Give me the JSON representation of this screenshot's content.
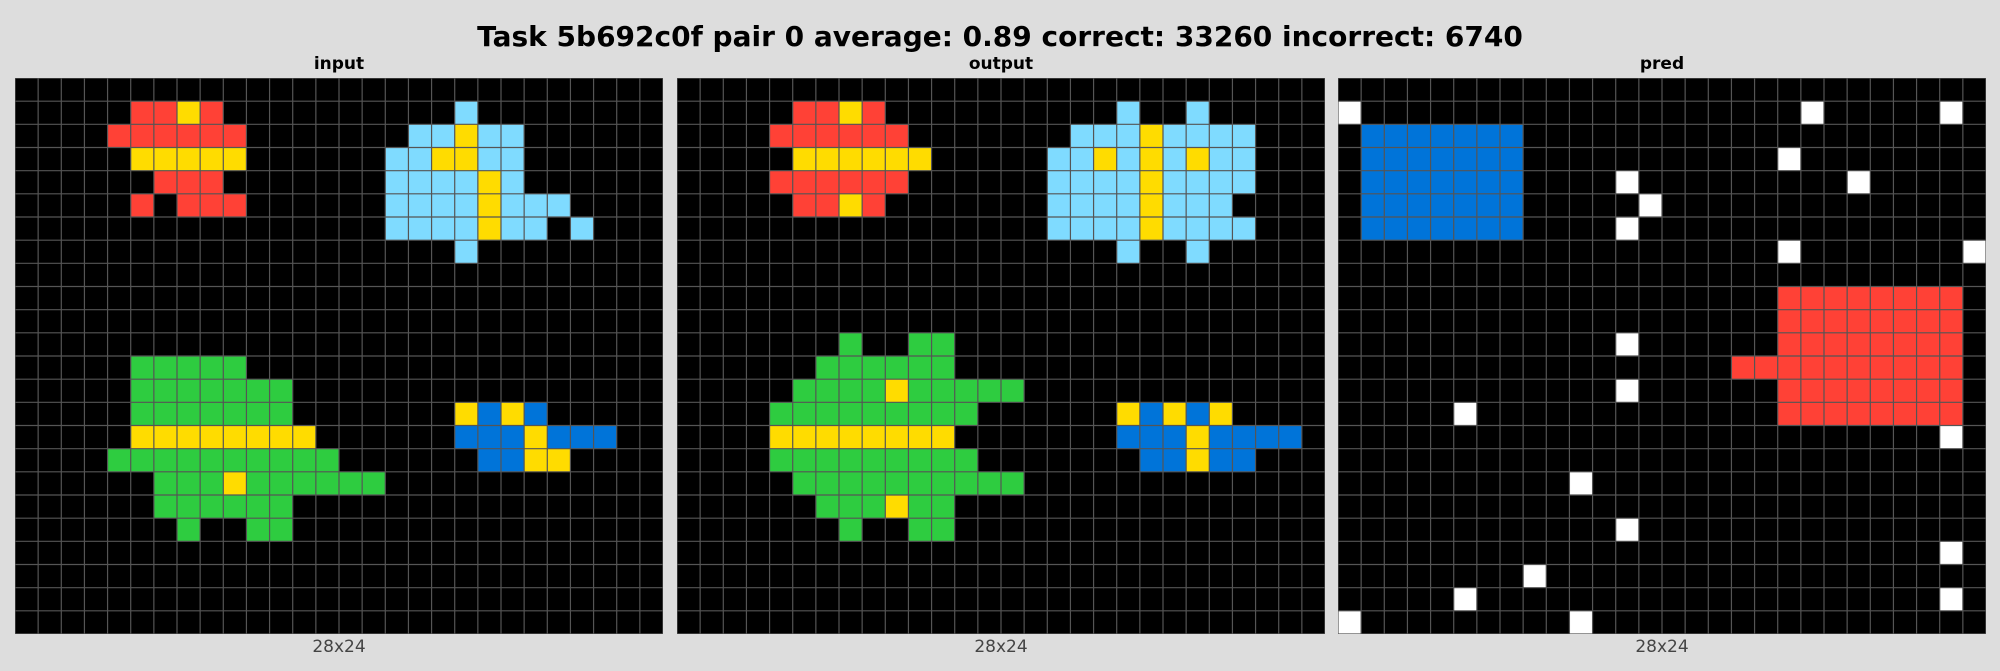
{
  "title": "Task 5b692c0f pair 0 average: 0.89 correct: 33260 incorrect: 6740",
  "palette": {
    "0": "#000000",
    "1": "#0074D9",
    "2": "#FF4136",
    "3": "#2ECC40",
    "4": "#FFDC00",
    "5": "#AAAAAA",
    "6": "#F012BE",
    "7": "#FF851B",
    "8": "#7FDBFF",
    "9": "#870C25",
    "10": "#FFFFFF",
    "grid_line": "#555555"
  },
  "panels": [
    {
      "label": "input",
      "size_label": "28x24",
      "cols": 28,
      "rows": 24,
      "cells": [
        [
          2,
          5,
          2
        ],
        [
          2,
          6,
          2
        ],
        [
          4,
          7,
          4
        ],
        [
          2,
          8,
          2
        ],
        [
          2,
          4,
          1
        ],
        [
          2,
          5,
          2
        ],
        [
          2,
          6,
          3
        ],
        [
          2,
          7,
          5
        ],
        [
          4,
          5,
          5
        ],
        [
          2,
          6,
          2
        ],
        [
          2,
          7,
          3
        ],
        [
          2,
          9,
          2
        ],
        [
          2,
          10,
          3
        ],
        [
          8,
          16,
          2
        ],
        [
          8,
          16,
          3
        ],
        [
          8,
          17,
          2
        ],
        [
          8,
          17,
          3
        ],
        [
          8,
          18,
          2
        ],
        [
          8,
          18,
          3
        ],
        [
          8,
          19,
          2
        ],
        [
          8,
          19,
          3
        ],
        [
          8,
          20,
          2
        ],
        [
          8,
          20,
          3
        ],
        [
          8,
          21,
          2
        ],
        [
          8,
          21,
          3
        ],
        [
          8,
          22,
          2
        ],
        [
          8,
          22,
          3
        ],
        [
          8,
          23,
          2
        ],
        [
          8,
          23,
          3
        ],
        [
          8,
          19,
          1
        ],
        [
          8,
          20,
          1
        ],
        [
          8,
          16,
          4
        ],
        [
          8,
          16,
          5
        ],
        [
          8,
          16,
          6
        ],
        [
          8,
          16,
          7
        ],
        [
          8,
          17,
          4
        ],
        [
          8,
          17,
          5
        ],
        [
          8,
          17,
          6
        ],
        [
          8,
          17,
          7
        ],
        [
          8,
          18,
          4
        ],
        [
          8,
          18,
          5
        ],
        [
          8,
          18,
          6
        ],
        [
          8,
          19,
          4
        ],
        [
          8,
          19,
          5
        ],
        [
          8,
          19,
          6
        ],
        [
          8,
          20,
          4
        ],
        [
          8,
          20,
          5
        ],
        [
          8,
          20,
          6
        ],
        [
          8,
          21,
          4
        ],
        [
          8,
          21,
          5
        ],
        [
          8,
          21,
          6
        ],
        [
          8,
          22,
          4
        ],
        [
          8,
          22,
          5
        ],
        [
          8,
          22,
          6
        ],
        [
          8,
          23,
          4
        ],
        [
          8,
          23,
          5
        ],
        [
          8,
          23,
          6
        ],
        [
          8,
          24,
          4
        ],
        [
          8,
          24,
          5
        ],
        [
          8,
          24,
          6
        ],
        [
          8,
          25,
          4
        ],
        [
          8,
          25,
          5
        ],
        [
          8,
          25,
          6
        ],
        [
          8,
          16,
          7
        ],
        [
          8,
          17,
          7
        ],
        [
          8,
          18,
          7
        ],
        [
          8,
          19,
          7
        ],
        [
          8,
          20,
          7
        ],
        [
          8,
          21,
          7
        ],
        [
          8,
          22,
          7
        ],
        [
          8,
          23,
          7
        ],
        [
          8,
          19,
          8
        ],
        [
          8,
          20,
          8
        ],
        [
          8,
          21,
          8
        ],
        [
          8,
          22,
          8
        ],
        [
          8,
          23,
          8
        ],
        [
          8,
          20,
          9
        ],
        [
          8,
          21,
          9
        ],
        [
          3,
          6,
          13
        ],
        [
          3,
          7,
          13
        ],
        [
          3,
          8,
          13
        ],
        [
          3,
          9,
          13
        ],
        [
          3,
          10,
          13
        ],
        [
          3,
          5,
          14
        ],
        [
          3,
          6,
          14
        ],
        [
          3,
          7,
          14
        ],
        [
          3,
          8,
          14
        ],
        [
          3,
          9,
          14
        ],
        [
          3,
          10,
          14
        ],
        [
          3,
          11,
          14
        ],
        [
          3,
          5,
          15
        ],
        [
          3,
          6,
          15
        ],
        [
          3,
          7,
          15
        ],
        [
          3,
          8,
          15
        ],
        [
          3,
          9,
          15
        ],
        [
          3,
          10,
          15
        ],
        [
          3,
          11,
          15
        ],
        [
          3,
          4,
          17
        ],
        [
          3,
          5,
          17
        ],
        [
          3,
          6,
          17
        ],
        [
          3,
          7,
          17
        ],
        [
          3,
          8,
          17
        ],
        [
          3,
          9,
          17
        ],
        [
          3,
          10,
          17
        ],
        [
          3,
          11,
          17
        ],
        [
          3,
          12,
          17
        ],
        [
          3,
          5,
          18
        ],
        [
          3,
          6,
          18
        ],
        [
          3,
          7,
          18
        ],
        [
          3,
          8,
          18
        ],
        [
          3,
          9,
          18
        ],
        [
          3,
          10,
          18
        ],
        [
          3,
          11,
          18
        ],
        [
          3,
          12,
          18
        ],
        [
          3,
          13,
          18
        ],
        [
          3,
          6,
          19
        ],
        [
          3,
          7,
          19
        ],
        [
          3,
          8,
          19
        ],
        [
          3,
          9,
          19
        ],
        [
          3,
          10,
          19
        ],
        [
          3,
          11,
          19
        ],
        [
          3,
          12,
          19
        ],
        [
          3,
          7,
          20
        ],
        [
          3,
          10,
          20
        ],
        [
          3,
          11,
          20
        ],
        [
          1,
          19,
          14
        ],
        [
          1,
          20,
          15
        ],
        [
          1,
          19,
          15
        ],
        [
          1,
          21,
          15
        ],
        [
          1,
          23,
          15
        ],
        [
          1,
          24,
          15
        ],
        [
          1,
          20,
          16
        ],
        [
          1,
          23,
          16
        ],
        [
          1,
          21,
          14
        ]
      ],
      "overrides": [
        [
          4,
          5,
          2
        ],
        [
          4,
          6,
          3
        ],
        [
          2,
          5,
          3
        ],
        [
          4,
          19,
          3
        ],
        [
          4,
          20,
          6
        ],
        [
          4,
          20,
          7
        ],
        [
          4,
          20,
          3
        ],
        [
          4,
          20,
          4
        ],
        [
          4,
          20,
          5
        ],
        [
          4,
          18,
          4
        ],
        [
          8,
          19,
          4
        ],
        [
          4,
          5,
          16
        ],
        [
          4,
          6,
          16
        ],
        [
          4,
          7,
          16
        ],
        [
          4,
          8,
          16
        ],
        [
          4,
          9,
          16
        ],
        [
          4,
          10,
          16
        ],
        [
          4,
          11,
          16
        ],
        [
          4,
          12,
          16
        ],
        [
          4,
          9,
          18
        ],
        [
          3,
          9,
          18
        ],
        [
          4,
          9,
          18
        ],
        [
          4,
          20,
          14
        ],
        [
          4,
          22,
          14
        ],
        [
          4,
          22,
          15
        ],
        [
          4,
          22,
          16
        ],
        [
          1,
          21,
          14
        ],
        [
          1,
          20,
          14
        ],
        [
          4,
          20,
          14
        ],
        [
          1,
          19,
          16
        ],
        [
          1,
          21,
          16
        ],
        [
          1,
          22,
          16
        ],
        [
          4,
          22,
          16
        ]
      ]
    },
    {
      "label": "output",
      "size_label": "28x24",
      "cols": 28,
      "rows": 24,
      "cells": [],
      "overrides": []
    },
    {
      "label": "pred",
      "size_label": "28x24",
      "cols": 28,
      "rows": 24,
      "cells": [],
      "overrides": []
    }
  ]
}
